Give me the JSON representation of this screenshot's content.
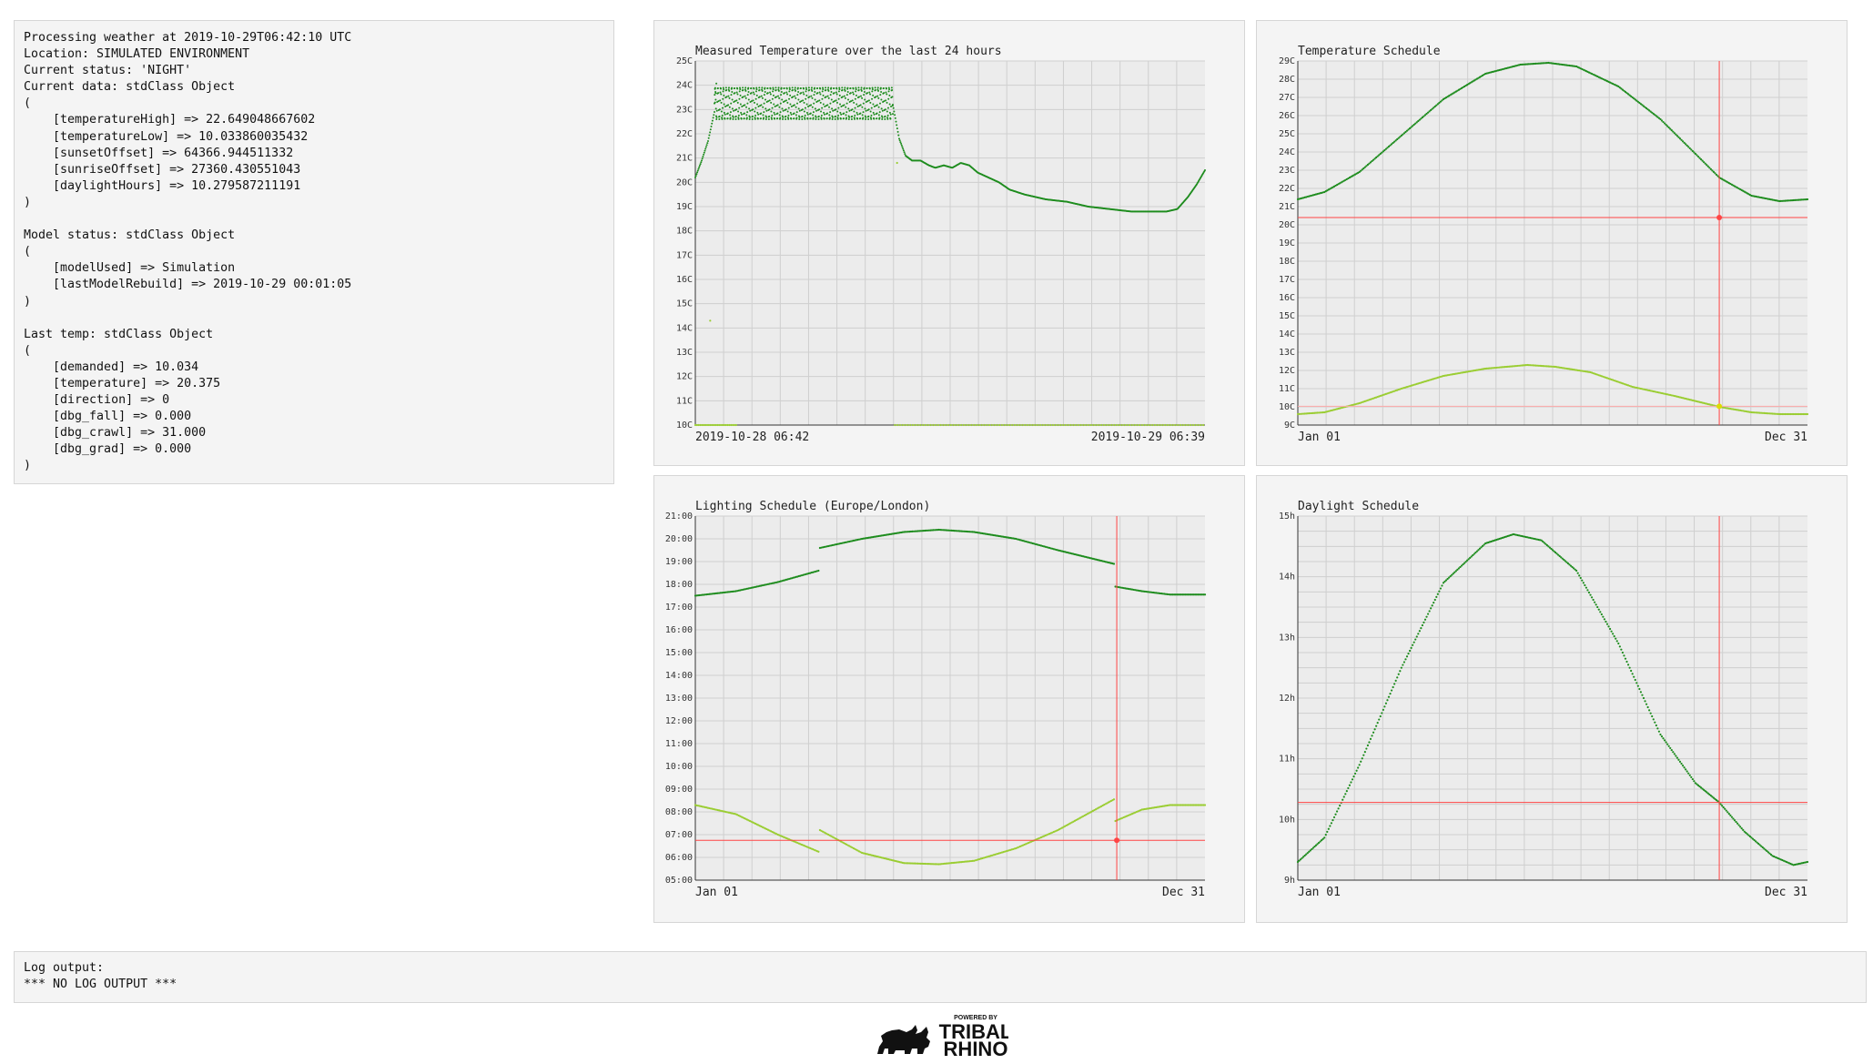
{
  "status": {
    "lines": [
      "Processing weather at 2019-10-29T06:42:10 UTC",
      "Location: SIMULATED ENVIRONMENT",
      "Current status: 'NIGHT'",
      "Current data: stdClass Object",
      "(",
      "    [temperatureHigh] => 22.649048667602",
      "    [temperatureLow] => 10.033860035432",
      "    [sunsetOffset] => 64366.944511332",
      "    [sunriseOffset] => 27360.430551043",
      "    [daylightHours] => 10.279587211191",
      ")",
      "",
      "Model status: stdClass Object",
      "(",
      "    [modelUsed] => Simulation",
      "    [lastModelRebuild] => 2019-10-29 00:01:05",
      ")",
      "",
      "Last temp: stdClass Object",
      "(",
      "    [demanded] => 10.034",
      "    [temperature] => 20.375",
      "    [direction] => 0",
      "    [dbg_fall] => 0.000",
      "    [dbg_crawl] => 31.000",
      "    [dbg_grad] => 0.000",
      ")"
    ]
  },
  "log": {
    "label": "Log output:",
    "content": "*** NO LOG OUTPUT ***"
  },
  "logo": {
    "top_text": "POWERED BY",
    "line1": "TRIBAL",
    "line2": "RHINO"
  },
  "colors": {
    "panel_bg": "#f4f4f4",
    "plot_bg": "#ececec",
    "grid": "#cfcfcf",
    "dark_green": "#1e8c1e",
    "light_green": "#9acd32",
    "marker_red": "#ff4444",
    "marker_pink": "#ffaaaa"
  },
  "chart_data": [
    {
      "type": "scatter",
      "title": "Measured Temperature over the last 24 hours",
      "y_ticks": [
        "10C",
        "11C",
        "12C",
        "13C",
        "14C",
        "15C",
        "16C",
        "17C",
        "18C",
        "19C",
        "20C",
        "21C",
        "22C",
        "23C",
        "24C",
        "25C"
      ],
      "ylim": [
        10,
        25
      ],
      "xlim": [
        0,
        24
      ],
      "x_labels": [
        "2019-10-28 06:42",
        "2019-10-29 06:39"
      ],
      "series": [
        {
          "color": "dark_green",
          "oscillation": {
            "x_start": 0.9,
            "x_end": 9.3,
            "period": 0.13,
            "low": 22.6,
            "high": 23.9
          },
          "points": [
            [
              0.0,
              20.2
            ],
            [
              0.3,
              20.9
            ],
            [
              0.6,
              21.7
            ],
            [
              0.9,
              22.9
            ],
            [
              1.0,
              24.2
            ],
            [
              9.3,
              23.2
            ],
            [
              9.6,
              21.8
            ],
            [
              9.9,
              21.1
            ],
            [
              10.2,
              20.9
            ],
            [
              10.6,
              20.9
            ],
            [
              11.0,
              20.7
            ],
            [
              11.3,
              20.6
            ],
            [
              11.7,
              20.7
            ],
            [
              12.1,
              20.6
            ],
            [
              12.5,
              20.8
            ],
            [
              12.9,
              20.7
            ],
            [
              13.3,
              20.4
            ],
            [
              13.8,
              20.2
            ],
            [
              14.3,
              20.0
            ],
            [
              14.8,
              19.7
            ],
            [
              15.5,
              19.5
            ],
            [
              16.5,
              19.3
            ],
            [
              17.5,
              19.2
            ],
            [
              18.5,
              19.0
            ],
            [
              19.5,
              18.9
            ],
            [
              20.5,
              18.8
            ],
            [
              21.4,
              18.8
            ],
            [
              22.2,
              18.8
            ],
            [
              22.7,
              18.9
            ],
            [
              23.2,
              19.4
            ],
            [
              23.6,
              19.9
            ],
            [
              24.0,
              20.5
            ]
          ]
        },
        {
          "color": "light_green",
          "outliers": [
            [
              0.7,
              14.3
            ],
            [
              9.5,
              20.8
            ]
          ],
          "baseline": {
            "x_start": 0,
            "x_end": 24,
            "y": 10.0
          }
        }
      ]
    },
    {
      "type": "line",
      "title": "Temperature Schedule",
      "y_ticks": [
        "9C",
        "10C",
        "11C",
        "12C",
        "13C",
        "14C",
        "15C",
        "16C",
        "17C",
        "18C",
        "19C",
        "20C",
        "21C",
        "22C",
        "23C",
        "24C",
        "25C",
        "26C",
        "27C",
        "28C",
        "29C"
      ],
      "ylim": [
        9,
        29
      ],
      "xlim": [
        1,
        365
      ],
      "x_labels": [
        "Jan 01",
        "Dec 31"
      ],
      "series": [
        {
          "name": "high",
          "color": "dark_green",
          "points": [
            [
              1,
              21.4
            ],
            [
              20,
              21.8
            ],
            [
              45,
              22.9
            ],
            [
              75,
              24.9
            ],
            [
              105,
              26.9
            ],
            [
              135,
              28.3
            ],
            [
              160,
              28.8
            ],
            [
              180,
              28.9
            ],
            [
              200,
              28.7
            ],
            [
              230,
              27.6
            ],
            [
              260,
              25.8
            ],
            [
              285,
              23.9
            ],
            [
              302,
              22.6
            ],
            [
              325,
              21.6
            ],
            [
              345,
              21.3
            ],
            [
              365,
              21.4
            ]
          ]
        },
        {
          "name": "low",
          "color": "light_green",
          "points": [
            [
              1,
              9.6
            ],
            [
              20,
              9.7
            ],
            [
              45,
              10.2
            ],
            [
              75,
              11.0
            ],
            [
              105,
              11.7
            ],
            [
              135,
              12.1
            ],
            [
              165,
              12.3
            ],
            [
              185,
              12.2
            ],
            [
              210,
              11.9
            ],
            [
              240,
              11.1
            ],
            [
              270,
              10.6
            ],
            [
              302,
              10.0
            ],
            [
              325,
              9.7
            ],
            [
              345,
              9.6
            ],
            [
              365,
              9.6
            ]
          ]
        }
      ],
      "marker": {
        "x": 302,
        "y_high": 20.4,
        "y_low": 10.03
      }
    },
    {
      "type": "line",
      "title": "Lighting Schedule (Europe/London)",
      "y_ticks": [
        "05:00",
        "06:00",
        "07:00",
        "08:00",
        "09:00",
        "10:00",
        "11:00",
        "12:00",
        "13:00",
        "14:00",
        "15:00",
        "16:00",
        "17:00",
        "18:00",
        "19:00",
        "20:00",
        "21:00"
      ],
      "ylim": [
        5,
        21
      ],
      "xlim": [
        1,
        365
      ],
      "x_labels": [
        "Jan 01",
        "Dec 31"
      ],
      "series": [
        {
          "name": "sunset",
          "color": "dark_green",
          "segments": [
            [
              [
                1,
                17.5
              ],
              [
                30,
                17.7
              ],
              [
                60,
                18.1
              ],
              [
                89,
                18.6
              ]
            ],
            [
              [
                90,
                19.6
              ],
              [
                120,
                20.0
              ],
              [
                150,
                20.3
              ],
              [
                175,
                20.4
              ],
              [
                200,
                20.3
              ],
              [
                230,
                20.0
              ],
              [
                260,
                19.5
              ],
              [
                300,
                18.9
              ]
            ],
            [
              [
                301,
                17.9
              ],
              [
                320,
                17.7
              ],
              [
                340,
                17.55
              ],
              [
                365,
                17.55
              ]
            ]
          ]
        },
        {
          "name": "sunrise",
          "color": "light_green",
          "segments": [
            [
              [
                1,
                8.3
              ],
              [
                30,
                7.9
              ],
              [
                60,
                7.0
              ],
              [
                89,
                6.25
              ]
            ],
            [
              [
                90,
                7.2
              ],
              [
                120,
                6.2
              ],
              [
                150,
                5.75
              ],
              [
                175,
                5.7
              ],
              [
                200,
                5.85
              ],
              [
                230,
                6.4
              ],
              [
                260,
                7.2
              ],
              [
                300,
                8.55
              ]
            ],
            [
              [
                301,
                7.6
              ],
              [
                320,
                8.1
              ],
              [
                340,
                8.3
              ],
              [
                365,
                8.3
              ]
            ]
          ]
        }
      ],
      "marker": {
        "x": 302,
        "y": 6.75
      }
    },
    {
      "type": "line",
      "title": "Daylight Schedule",
      "y_ticks": [
        "9h",
        "10h",
        "11h",
        "12h",
        "13h",
        "14h",
        "15h"
      ],
      "ylim": [
        9,
        15
      ],
      "xlim": [
        1,
        365
      ],
      "x_labels": [
        "Jan 01",
        "Dec 31"
      ],
      "series": [
        {
          "name": "daylight",
          "color": "dark_green",
          "points": [
            [
              1,
              9.3
            ],
            [
              20,
              9.7
            ],
            [
              45,
              10.9
            ],
            [
              75,
              12.5
            ],
            [
              105,
              13.9
            ],
            [
              135,
              14.55
            ],
            [
              155,
              14.7
            ],
            [
              175,
              14.6
            ],
            [
              200,
              14.1
            ],
            [
              230,
              12.9
            ],
            [
              260,
              11.4
            ],
            [
              285,
              10.6
            ],
            [
              302,
              10.28
            ],
            [
              320,
              9.8
            ],
            [
              340,
              9.4
            ],
            [
              355,
              9.25
            ],
            [
              365,
              9.3
            ]
          ]
        }
      ],
      "marker": {
        "x": 302,
        "y": 10.28
      }
    }
  ]
}
